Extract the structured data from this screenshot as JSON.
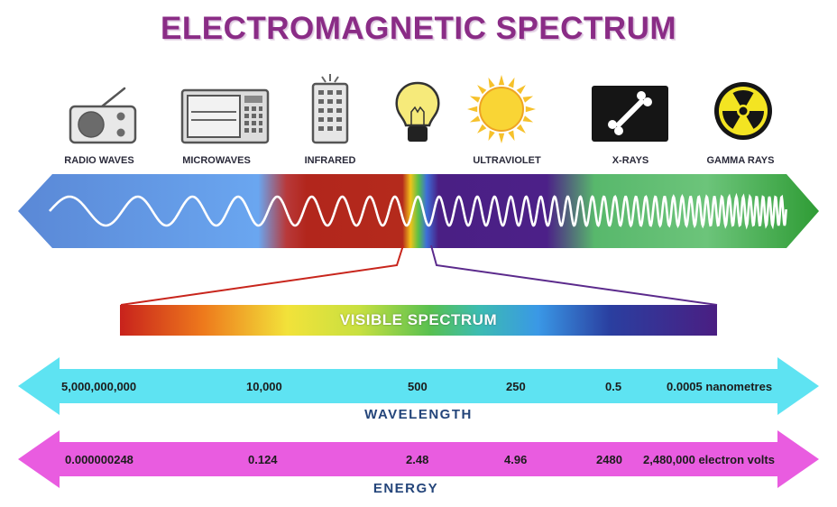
{
  "title": "ELECTROMAGNETIC SPECTRUM",
  "bands": [
    {
      "label": "RADIO WAVES",
      "icon": "radio-icon"
    },
    {
      "label": "MICROWAVES",
      "icon": "microwave-icon"
    },
    {
      "label": "INFRARED",
      "icon": "remote-control-icon"
    },
    {
      "label": "",
      "icon": "light-bulb-icon"
    },
    {
      "label": "ULTRAVIOLET",
      "icon": "sun-icon"
    },
    {
      "label": "X-RAYS",
      "icon": "bone-xray-icon"
    },
    {
      "label": "GAMMA RAYS",
      "icon": "radiation-icon"
    }
  ],
  "visible_spectrum": {
    "label": "VISIBLE SPECTRUM"
  },
  "wavelength": {
    "name": "WAVELENGTH",
    "values": [
      "5,000,000,000",
      "10,000",
      "500",
      "250",
      "0.5",
      "0.0005 nanometres"
    ],
    "color": "#5ee3f2"
  },
  "energy": {
    "name": "ENERGY",
    "values": [
      "0.000000248",
      "0.124",
      "2.48",
      "4.96",
      "2480",
      "2,480,000 electron volts"
    ],
    "color": "#e95ce0"
  },
  "colors": {
    "title": "#8a2c86",
    "axis_name": "#24457a",
    "radio": "#5d91dc",
    "microwave": "#6ba4ee",
    "infrared": "#b52a1f",
    "ultraviolet": "#4b1f86",
    "xray": "#5fbf72",
    "gamma": "#3fa640"
  }
}
